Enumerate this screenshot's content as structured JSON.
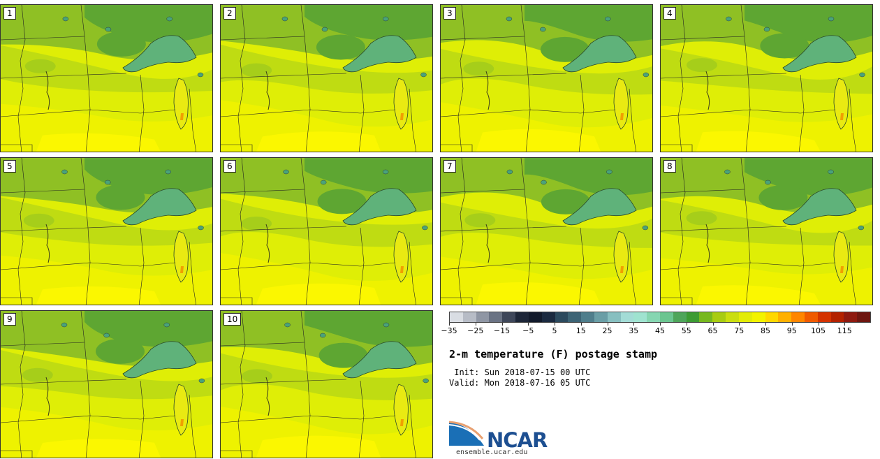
{
  "stamps": [
    {
      "label": "1"
    },
    {
      "label": "2"
    },
    {
      "label": "3"
    },
    {
      "label": "4"
    },
    {
      "label": "5"
    },
    {
      "label": "6"
    },
    {
      "label": "7"
    },
    {
      "label": "8"
    },
    {
      "label": "9"
    },
    {
      "label": "10"
    }
  ],
  "colorbar": {
    "colors": [
      "#d9dde3",
      "#b7bcc6",
      "#8f96a4",
      "#6a7384",
      "#3e475a",
      "#1d2638",
      "#121a2b",
      "#1b2a40",
      "#2c4a5e",
      "#3d6475",
      "#4f7e8c",
      "#6a9ea6",
      "#87bfc0",
      "#a3dcd6",
      "#9fe3d0",
      "#86d6b1",
      "#6bc590",
      "#4ea55a",
      "#3c9b33",
      "#76b81f",
      "#a8cc12",
      "#cade10",
      "#e3ec07",
      "#f3f300",
      "#ffd800",
      "#ffb000",
      "#ff8600",
      "#f05a00",
      "#d43300",
      "#b32200",
      "#8e1a10",
      "#6e1610"
    ],
    "tick_labels": [
      "-35",
      "-25",
      "-15",
      "-5",
      "5",
      "15",
      "25",
      "35",
      "45",
      "55",
      "65",
      "75",
      "85",
      "95",
      "105",
      "115"
    ]
  },
  "title": "2-m temperature (F) postage stamp",
  "init_line": " Init: Sun 2018-07-15 00 UTC",
  "valid_line": "Valid: Mon 2018-07-16 05 UTC",
  "logo": {
    "text": "NCAR",
    "url": "ensemble.ucar.edu"
  }
}
